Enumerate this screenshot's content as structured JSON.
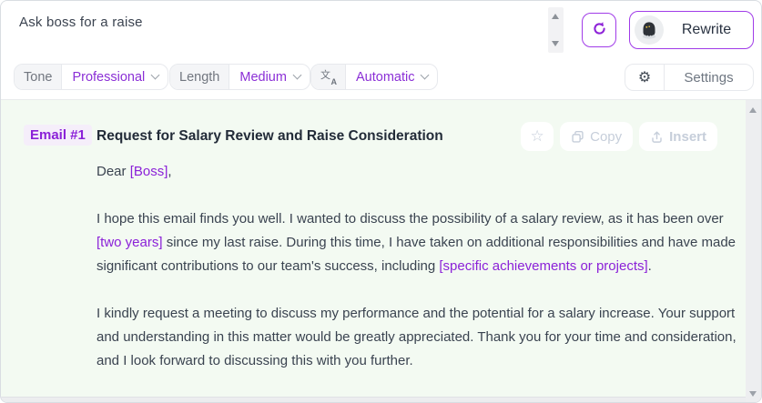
{
  "prompt_bar": {
    "input_text": "Ask boss for a raise"
  },
  "toolbar": {
    "rewrite_label": "Rewrite",
    "tone_label": "Tone",
    "tone_value": "Professional",
    "length_label": "Length",
    "length_value": "Medium",
    "language_value": "Automatic",
    "settings_label": "Settings"
  },
  "email": {
    "badge": "Email #1",
    "title": "Request for Salary Review and Raise Consideration",
    "actions": {
      "copy_label": "Copy",
      "insert_label": "Insert"
    },
    "paragraphs": [
      [
        {
          "text": "Dear "
        },
        {
          "text": "[Boss]",
          "placeholder": true
        },
        {
          "text": ","
        }
      ],
      [
        {
          "text": "I hope this email finds you well. I wanted to discuss the possibility of a salary review, as it has been over "
        },
        {
          "text": "[two years]",
          "placeholder": true
        },
        {
          "text": " since my last raise. During this time, I have taken on additional responsibilities and have made significant contributions to our team's success, including "
        },
        {
          "text": "[specific achievements or projects]",
          "placeholder": true
        },
        {
          "text": "."
        }
      ],
      [
        {
          "text": "I kindly request a meeting to discuss my performance and the potential for a salary increase. Your support and understanding in this matter would be greatly appreciated. Thank you for your time and consideration, and I look forward to discussing this with you further."
        }
      ]
    ]
  },
  "icons": {
    "gear": "⚙",
    "star": "☆",
    "translate_primary": "文",
    "translate_secondary": "A"
  },
  "colors": {
    "accent_text": "#8B2FD6",
    "accent_border": "#A03BE8",
    "panel_background": "#F3FAF2",
    "faded_action": "#C6CEDA",
    "ghost_body": "#2E3238",
    "ghost_eyes": "#E9C23F"
  }
}
